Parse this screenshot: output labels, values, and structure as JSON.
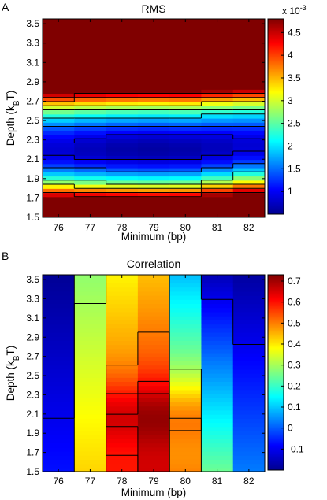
{
  "chart_data": [
    {
      "panel": "A",
      "type": "heatmap",
      "title": "RMS",
      "xlabel": "Minimum (bp)",
      "ylabel": {
        "main": "Depth (k",
        "sub": "B",
        "tail": "T)"
      },
      "x": [
        76,
        77,
        78,
        79,
        80,
        81,
        82
      ],
      "xlim": [
        75.5,
        82.5
      ],
      "ylim": [
        1.5,
        3.55
      ],
      "xticks": [
        "76",
        "77",
        "78",
        "79",
        "80",
        "81",
        "82"
      ],
      "yticks": [
        "1.5",
        "1.7",
        "1.9",
        "2.1",
        "2.3",
        "2.5",
        "2.7",
        "2.9",
        "3.1",
        "3.3",
        "3.5"
      ],
      "colorbar": {
        "scale_label": "x 10",
        "scale_exp": "-3",
        "range": [
          0.5,
          4.8
        ],
        "ticks": [
          "1",
          "1.5",
          "2",
          "2.5",
          "3",
          "3.5",
          "4",
          "4.5"
        ],
        "tick_values": [
          1,
          1.5,
          2,
          2.5,
          3,
          3.5,
          4,
          4.5
        ]
      },
      "field": {
        "center_y": [
          2.2,
          2.2,
          2.2,
          2.2,
          2.2,
          2.22,
          2.24
        ],
        "min_value": [
          0.85,
          0.75,
          0.68,
          0.65,
          0.68,
          0.75,
          0.85
        ],
        "a_above": 11.5,
        "a_below": 16.5
      },
      "contour_levels": [
        0.9,
        1.4,
        2.0,
        2.6,
        3.2,
        3.9,
        4.4
      ]
    },
    {
      "panel": "B",
      "type": "heatmap",
      "title": "Correlation",
      "xlabel": "Minimum (bp)",
      "ylabel": {
        "main": "Depth (k",
        "sub": "B",
        "tail": "T)"
      },
      "x": [
        76,
        77,
        78,
        79,
        80,
        81,
        82
      ],
      "xlim": [
        75.5,
        82.5
      ],
      "ylim": [
        1.5,
        3.55
      ],
      "xticks": [
        "76",
        "77",
        "78",
        "79",
        "80",
        "81",
        "82"
      ],
      "yticks": [
        "1.5",
        "1.7",
        "1.9",
        "2.1",
        "2.3",
        "2.5",
        "2.7",
        "2.9",
        "3.1",
        "3.3",
        "3.5"
      ],
      "colorbar": {
        "range": [
          -0.2,
          0.73
        ],
        "ticks": [
          "-0.1",
          "0",
          "0.1",
          "0.2",
          "0.3",
          "0.4",
          "0.5",
          "0.6",
          "0.7"
        ],
        "tick_values": [
          -0.1,
          0,
          0.1,
          0.2,
          0.3,
          0.4,
          0.5,
          0.6,
          0.7
        ]
      },
      "columns": [
        {
          "x": 76,
          "value_low": -0.07,
          "value_high": -0.18
        },
        {
          "x": 77,
          "value_low": 0.42,
          "value_high": 0.28
        },
        {
          "x": 78,
          "value_low": 0.65,
          "value_high": 0.45
        },
        {
          "x": 79,
          "value_low": 0.71,
          "value_high": 0.5
        },
        {
          "x": 80,
          "value_low": 0.55,
          "value_high": 0.15
        },
        {
          "x": 81,
          "value_low": 0.25,
          "value_high": -0.15
        },
        {
          "x": 82,
          "value_low": 0.03,
          "value_high": -0.17
        }
      ],
      "contour_levels": [
        -0.1,
        0.3,
        0.5,
        0.6,
        0.65
      ]
    }
  ]
}
